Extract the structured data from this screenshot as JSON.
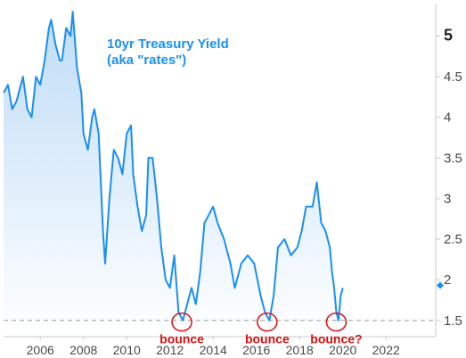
{
  "chart_data": {
    "type": "area",
    "title_lines": [
      "10yr Treasury Yield",
      "(aka \"rates\")"
    ],
    "xlim": [
      2004.3,
      2024.3
    ],
    "ylim": [
      1.3,
      5.4
    ],
    "x_ticks": [
      2006,
      2008,
      2010,
      2012,
      2014,
      2016,
      2018,
      2020,
      2022
    ],
    "y_ticks": [
      1.5,
      2,
      2.5,
      3,
      3.5,
      4,
      4.5,
      5
    ],
    "y_tick_labels": [
      "1.5",
      "2",
      "2.5",
      "3",
      "3.5",
      "4",
      "4.5",
      "5"
    ],
    "reference_line": 1.5,
    "last_value": 1.93,
    "colors": {
      "line": "#1a8ff0",
      "fill_top": "#bfdcf7",
      "fill_bottom": "#ffffff",
      "annotation": "#d81010",
      "ref_line": "#9a9a9a"
    },
    "series": [
      {
        "x": [
          2004.3,
          2004.5,
          2004.7,
          2004.9,
          2005.0,
          2005.2,
          2005.4,
          2005.6,
          2005.8,
          2006.0,
          2006.2,
          2006.4,
          2006.5,
          2006.7,
          2006.9,
          2007.0,
          2007.2,
          2007.4,
          2007.5,
          2007.7,
          2007.9,
          2008.0,
          2008.2,
          2008.4,
          2008.5,
          2008.7,
          2008.9,
          2009.0,
          2009.2,
          2009.4,
          2009.6,
          2009.8,
          2010.0,
          2010.2,
          2010.3,
          2010.5,
          2010.7,
          2010.9,
          2011.0,
          2011.2,
          2011.4,
          2011.6,
          2011.8,
          2012.0,
          2012.2,
          2012.4,
          2012.6,
          2012.8,
          2013.0,
          2013.2,
          2013.4,
          2013.6,
          2013.8,
          2014.0,
          2014.2,
          2014.5,
          2014.8,
          2015.0,
          2015.3,
          2015.6,
          2015.9,
          2016.2,
          2016.4,
          2016.6,
          2016.8,
          2017.0,
          2017.3,
          2017.6,
          2017.9,
          2018.1,
          2018.3,
          2018.6,
          2018.8,
          2019.0,
          2019.2,
          2019.4,
          2019.5,
          2019.6,
          2019.7,
          2019.8,
          2019.9,
          2020.0
        ],
        "y": [
          4.3,
          4.4,
          4.1,
          4.2,
          4.3,
          4.5,
          4.1,
          4.0,
          4.5,
          4.4,
          4.7,
          5.1,
          5.2,
          4.9,
          4.7,
          4.7,
          5.1,
          5.0,
          5.3,
          4.6,
          4.3,
          3.8,
          3.6,
          4.0,
          4.1,
          3.8,
          2.6,
          2.2,
          3.0,
          3.6,
          3.5,
          3.3,
          3.8,
          3.9,
          3.3,
          2.9,
          2.6,
          2.8,
          3.5,
          3.5,
          3.0,
          2.4,
          2.0,
          1.9,
          2.3,
          1.6,
          1.5,
          1.7,
          1.9,
          1.7,
          2.1,
          2.7,
          2.8,
          2.9,
          2.7,
          2.5,
          2.2,
          1.9,
          2.2,
          2.3,
          2.2,
          1.8,
          1.6,
          1.5,
          1.8,
          2.4,
          2.5,
          2.3,
          2.4,
          2.6,
          2.9,
          2.9,
          3.2,
          2.7,
          2.6,
          2.4,
          2.1,
          1.9,
          1.6,
          1.5,
          1.8,
          1.9
        ]
      }
    ],
    "annotations": [
      {
        "label": "bounce",
        "x": 2012.55,
        "y": 1.48
      },
      {
        "label": "bounce",
        "x": 2016.5,
        "y": 1.48
      },
      {
        "label": "bounce?",
        "x": 2019.7,
        "y": 1.48
      }
    ]
  }
}
